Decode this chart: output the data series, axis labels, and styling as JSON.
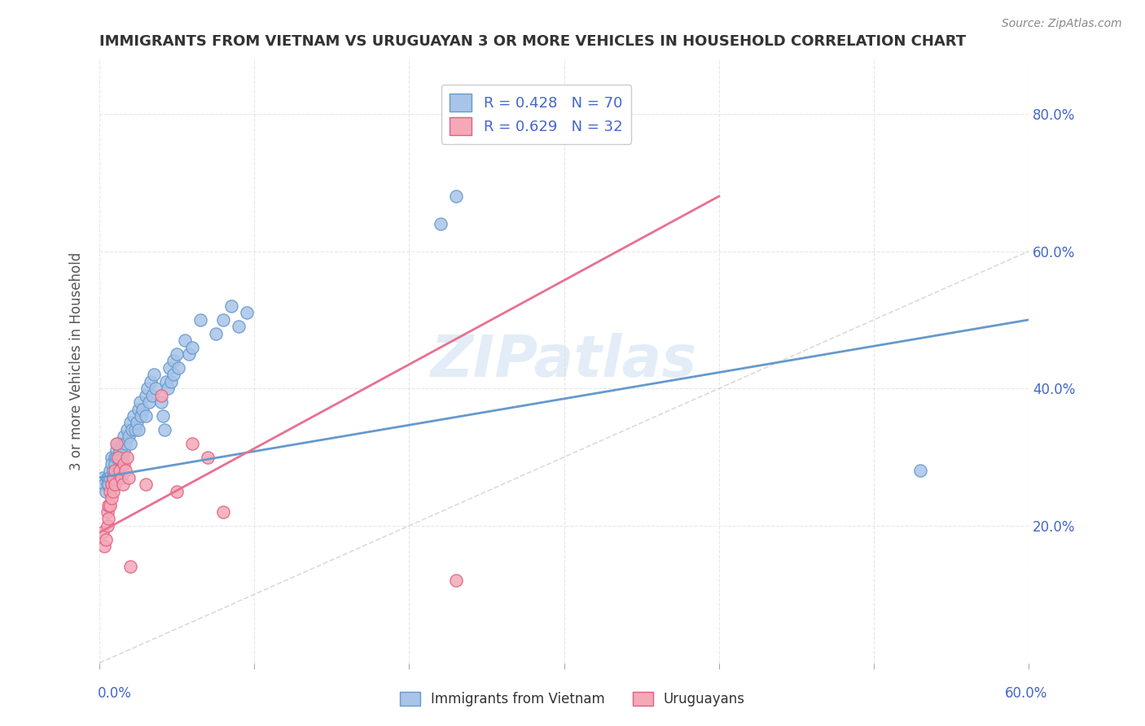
{
  "title": "IMMIGRANTS FROM VIETNAM VS URUGUAYAN 3 OR MORE VEHICLES IN HOUSEHOLD CORRELATION CHART",
  "source": "Source: ZipAtlas.com",
  "ylabel": "3 or more Vehicles in Household",
  "yaxis_labels": [
    "20.0%",
    "40.0%",
    "60.0%",
    "80.0%"
  ],
  "xlim": [
    0.0,
    0.6
  ],
  "ylim": [
    0.0,
    0.88
  ],
  "R_vietnam": 0.428,
  "N_vietnam": 70,
  "R_uruguay": 0.629,
  "N_uruguay": 32,
  "color_vietnam": "#a8c4e8",
  "color_uruguay": "#f4a8b8",
  "line_color_vietnam": "#6699cc",
  "line_color_uruguay": "#e87090",
  "edge_color_uruguay": "#e06080",
  "diagonal_color": "#cccccc",
  "watermark": "ZIPatlas",
  "legend_text_color": "#4466cc",
  "vietnam_scatter": [
    [
      0.002,
      0.27
    ],
    [
      0.003,
      0.26
    ],
    [
      0.004,
      0.25
    ],
    [
      0.005,
      0.27
    ],
    [
      0.005,
      0.26
    ],
    [
      0.006,
      0.27
    ],
    [
      0.006,
      0.26
    ],
    [
      0.007,
      0.28
    ],
    [
      0.007,
      0.27
    ],
    [
      0.008,
      0.3
    ],
    [
      0.008,
      0.29
    ],
    [
      0.009,
      0.28
    ],
    [
      0.009,
      0.27
    ],
    [
      0.01,
      0.3
    ],
    [
      0.01,
      0.29
    ],
    [
      0.011,
      0.31
    ],
    [
      0.011,
      0.3
    ],
    [
      0.012,
      0.32
    ],
    [
      0.012,
      0.28
    ],
    [
      0.013,
      0.31
    ],
    [
      0.014,
      0.3
    ],
    [
      0.015,
      0.32
    ],
    [
      0.015,
      0.3
    ],
    [
      0.016,
      0.33
    ],
    [
      0.016,
      0.31
    ],
    [
      0.017,
      0.32
    ],
    [
      0.018,
      0.34
    ],
    [
      0.019,
      0.33
    ],
    [
      0.02,
      0.35
    ],
    [
      0.02,
      0.32
    ],
    [
      0.021,
      0.34
    ],
    [
      0.022,
      0.36
    ],
    [
      0.023,
      0.34
    ],
    [
      0.024,
      0.35
    ],
    [
      0.025,
      0.37
    ],
    [
      0.025,
      0.34
    ],
    [
      0.026,
      0.38
    ],
    [
      0.027,
      0.36
    ],
    [
      0.028,
      0.37
    ],
    [
      0.03,
      0.39
    ],
    [
      0.03,
      0.36
    ],
    [
      0.031,
      0.4
    ],
    [
      0.032,
      0.38
    ],
    [
      0.033,
      0.41
    ],
    [
      0.034,
      0.39
    ],
    [
      0.035,
      0.42
    ],
    [
      0.036,
      0.4
    ],
    [
      0.04,
      0.38
    ],
    [
      0.041,
      0.36
    ],
    [
      0.042,
      0.34
    ],
    [
      0.043,
      0.41
    ],
    [
      0.044,
      0.4
    ],
    [
      0.045,
      0.43
    ],
    [
      0.046,
      0.41
    ],
    [
      0.048,
      0.44
    ],
    [
      0.048,
      0.42
    ],
    [
      0.05,
      0.45
    ],
    [
      0.051,
      0.43
    ],
    [
      0.055,
      0.47
    ],
    [
      0.058,
      0.45
    ],
    [
      0.06,
      0.46
    ],
    [
      0.065,
      0.5
    ],
    [
      0.075,
      0.48
    ],
    [
      0.08,
      0.5
    ],
    [
      0.085,
      0.52
    ],
    [
      0.09,
      0.49
    ],
    [
      0.095,
      0.51
    ],
    [
      0.22,
      0.64
    ],
    [
      0.23,
      0.68
    ],
    [
      0.53,
      0.28
    ]
  ],
  "uruguay_scatter": [
    [
      0.002,
      0.19
    ],
    [
      0.003,
      0.17
    ],
    [
      0.004,
      0.18
    ],
    [
      0.005,
      0.22
    ],
    [
      0.005,
      0.2
    ],
    [
      0.006,
      0.23
    ],
    [
      0.006,
      0.21
    ],
    [
      0.007,
      0.25
    ],
    [
      0.007,
      0.23
    ],
    [
      0.008,
      0.26
    ],
    [
      0.008,
      0.24
    ],
    [
      0.009,
      0.27
    ],
    [
      0.009,
      0.25
    ],
    [
      0.01,
      0.28
    ],
    [
      0.01,
      0.26
    ],
    [
      0.011,
      0.32
    ],
    [
      0.012,
      0.3
    ],
    [
      0.013,
      0.28
    ],
    [
      0.014,
      0.27
    ],
    [
      0.015,
      0.26
    ],
    [
      0.016,
      0.29
    ],
    [
      0.017,
      0.28
    ],
    [
      0.018,
      0.3
    ],
    [
      0.019,
      0.27
    ],
    [
      0.02,
      0.14
    ],
    [
      0.04,
      0.39
    ],
    [
      0.06,
      0.32
    ],
    [
      0.07,
      0.3
    ],
    [
      0.08,
      0.22
    ],
    [
      0.23,
      0.12
    ],
    [
      0.05,
      0.25
    ],
    [
      0.03,
      0.26
    ]
  ],
  "vietnam_trendline": [
    [
      0.0,
      0.27
    ],
    [
      0.6,
      0.5
    ]
  ],
  "uruguay_trendline": [
    [
      0.0,
      0.19
    ],
    [
      0.4,
      0.68
    ]
  ]
}
